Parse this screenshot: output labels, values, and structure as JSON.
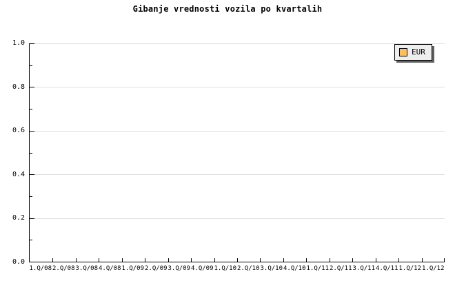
{
  "colors": {
    "background": "#ffffff",
    "axis": "#000000",
    "grid": "#dedede",
    "text": "#000000",
    "legend_bg": "#eeeeee",
    "legend_border": "#000000",
    "legend_shadow": "#606060",
    "series_swatch": "#fbbf60"
  },
  "chart_data": {
    "type": "line",
    "title": "Gibanje vrednosti vozila po kvartalih",
    "categories": [
      "1.Q/08",
      "2.Q/08",
      "3.Q/08",
      "4.Q/08",
      "1.Q/09",
      "2.Q/09",
      "3.Q/09",
      "4.Q/09",
      "1.Q/10",
      "2.Q/10",
      "3.Q/10",
      "4.Q/10",
      "1.Q/11",
      "2.Q/11",
      "3.Q/11",
      "4.Q/11",
      "1.Q/12",
      "1.Q/12"
    ],
    "series": [
      {
        "name": "EUR",
        "color": "#fbbf60",
        "values": []
      }
    ],
    "xlabel": "",
    "ylabel": "",
    "ylim": [
      0,
      1
    ],
    "ytick_values": [
      0,
      0.2,
      0.4,
      0.6,
      0.8,
      1.0
    ],
    "ytick_labels": [
      "0.0",
      "0.2",
      "0.4",
      "0.6",
      "0.8",
      "1.0"
    ],
    "minor_ytick_interval": 0.1,
    "grid": "horizontal-major",
    "legend_position": "top-right",
    "plot_is_empty": true
  }
}
